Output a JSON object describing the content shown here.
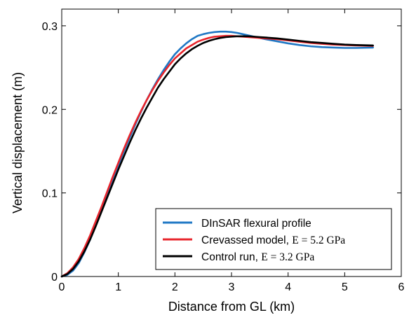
{
  "chart_data": {
    "type": "line",
    "title": "",
    "xlabel": "Distance from GL (km)",
    "ylabel": "Vertical displacement (m)",
    "xlim": [
      0,
      6
    ],
    "ylim": [
      0,
      0.32
    ],
    "xticks": [
      0,
      1,
      2,
      3,
      4,
      5,
      6
    ],
    "xtick_labels": [
      "0",
      "1",
      "2",
      "3",
      "4",
      "5",
      "6"
    ],
    "yticks": [
      0,
      0.1,
      0.2,
      0.3
    ],
    "ytick_labels": [
      "0",
      "0.1",
      "0.2",
      "0.3"
    ],
    "grid": false,
    "legend_position": "bottom-right",
    "series": [
      {
        "name": "DInSAR flexural profile",
        "name_math": "",
        "color": "#1f77c4",
        "x": [
          0,
          0.1,
          0.2,
          0.3,
          0.4,
          0.5,
          0.6,
          0.7,
          0.8,
          0.9,
          1.0,
          1.1,
          1.2,
          1.3,
          1.4,
          1.5,
          1.6,
          1.7,
          1.8,
          1.9,
          2.0,
          2.1,
          2.2,
          2.3,
          2.4,
          2.5,
          2.6,
          2.7,
          2.8,
          2.9,
          3.0,
          3.1,
          3.2,
          3.3,
          3.4,
          3.5,
          3.6,
          3.8,
          4.0,
          4.2,
          4.4,
          4.6,
          4.8,
          5.0,
          5.2,
          5.5
        ],
        "y": [
          0,
          0.002,
          0.007,
          0.016,
          0.029,
          0.044,
          0.061,
          0.079,
          0.097,
          0.115,
          0.133,
          0.15,
          0.166,
          0.182,
          0.197,
          0.211,
          0.224,
          0.236,
          0.247,
          0.257,
          0.266,
          0.273,
          0.279,
          0.284,
          0.288,
          0.29,
          0.2915,
          0.2925,
          0.293,
          0.293,
          0.2925,
          0.2915,
          0.29,
          0.2885,
          0.287,
          0.2855,
          0.284,
          0.2815,
          0.279,
          0.277,
          0.2755,
          0.2745,
          0.274,
          0.2735,
          0.2735,
          0.274
        ]
      },
      {
        "name": "Crevassed model, ",
        "name_math": "E = 5.2 GPa",
        "color": "#e8242b",
        "x": [
          0,
          0.1,
          0.2,
          0.3,
          0.4,
          0.5,
          0.6,
          0.7,
          0.8,
          0.9,
          1.0,
          1.1,
          1.2,
          1.3,
          1.4,
          1.5,
          1.6,
          1.7,
          1.8,
          1.9,
          2.0,
          2.1,
          2.2,
          2.3,
          2.4,
          2.5,
          2.6,
          2.7,
          2.8,
          2.9,
          3.0,
          3.1,
          3.2,
          3.3,
          3.4,
          3.5,
          3.6,
          3.8,
          4.0,
          4.2,
          4.4,
          4.6,
          4.8,
          5.0,
          5.2,
          5.5
        ],
        "y": [
          0,
          0.004,
          0.011,
          0.021,
          0.034,
          0.049,
          0.066,
          0.083,
          0.101,
          0.119,
          0.136,
          0.153,
          0.169,
          0.184,
          0.198,
          0.211,
          0.223,
          0.234,
          0.244,
          0.253,
          0.261,
          0.267,
          0.273,
          0.277,
          0.281,
          0.2835,
          0.2855,
          0.287,
          0.2875,
          0.288,
          0.288,
          0.2875,
          0.287,
          0.2865,
          0.286,
          0.2855,
          0.285,
          0.284,
          0.2825,
          0.281,
          0.2795,
          0.2785,
          0.2775,
          0.277,
          0.2765,
          0.276
        ]
      },
      {
        "name": "Control run, ",
        "name_math": "E = 3.2 GPa",
        "color": "#000000",
        "x": [
          0,
          0.1,
          0.2,
          0.3,
          0.4,
          0.5,
          0.6,
          0.7,
          0.8,
          0.9,
          1.0,
          1.1,
          1.2,
          1.3,
          1.4,
          1.5,
          1.6,
          1.7,
          1.8,
          1.9,
          2.0,
          2.1,
          2.2,
          2.3,
          2.4,
          2.5,
          2.6,
          2.7,
          2.8,
          2.9,
          3.0,
          3.1,
          3.2,
          3.3,
          3.4,
          3.5,
          3.6,
          3.8,
          4.0,
          4.2,
          4.4,
          4.6,
          4.8,
          5.0,
          5.2,
          5.5
        ],
        "y": [
          0,
          0.003,
          0.009,
          0.018,
          0.03,
          0.044,
          0.06,
          0.077,
          0.094,
          0.111,
          0.128,
          0.144,
          0.16,
          0.175,
          0.189,
          0.202,
          0.214,
          0.226,
          0.236,
          0.245,
          0.254,
          0.261,
          0.267,
          0.272,
          0.276,
          0.2795,
          0.282,
          0.284,
          0.2855,
          0.2865,
          0.287,
          0.2875,
          0.2875,
          0.2875,
          0.287,
          0.2865,
          0.286,
          0.285,
          0.2835,
          0.282,
          0.2805,
          0.2795,
          0.2785,
          0.2775,
          0.277,
          0.2765
        ]
      }
    ]
  }
}
